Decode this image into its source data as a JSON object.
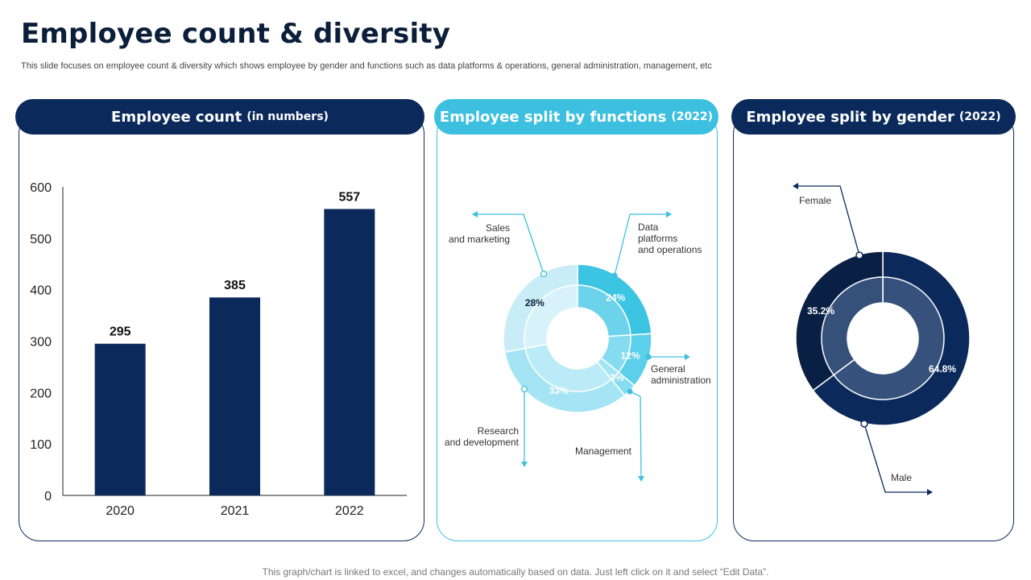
{
  "page": {
    "title": "Employee count & diversity",
    "subtitle": "This slide focuses on employee count & diversity which shows employee by gender and functions such as data platforms & operations, general administration, management, etc",
    "footer": "This graph/chart is linked to excel, and changes automatically based on data. Just left click on it and select “Edit Data”."
  },
  "panels": {
    "count": {
      "title": "Employee count ",
      "title_suffix": "(in numbers)"
    },
    "functions": {
      "title": "Employee split by functions ",
      "title_suffix": "(2022)"
    },
    "gender": {
      "title": "Employee split by gender ",
      "title_suffix": "(2022)"
    }
  },
  "colors": {
    "navy": "#0b2a5b",
    "bar": "#0b2a5b",
    "cyan": "#3dbfe0",
    "sales": "#c9edf7",
    "data_platforms": "#3cc4e3",
    "general_admin": "#5ccfeb",
    "management": "#86dcf1",
    "research": "#a4e4f4",
    "female": "#0a1f44",
    "male": "#0b2a5b"
  },
  "chart_data": [
    {
      "type": "bar",
      "title": "Employee count (in numbers)",
      "categories": [
        "2020",
        "2021",
        "2022"
      ],
      "values": [
        295,
        385,
        557
      ],
      "data_labels": [
        "295",
        "385",
        "557"
      ],
      "ylim": [
        0,
        600
      ],
      "yticks": [
        0,
        100,
        200,
        300,
        400,
        500,
        600
      ],
      "ytick_labels": [
        "0",
        "100",
        "200",
        "300",
        "400",
        "500",
        "600"
      ],
      "xlabel": "",
      "ylabel": "",
      "grid": false
    },
    {
      "type": "pie",
      "subtype": "donut",
      "title": "Employee split by functions (2022)",
      "slices": [
        {
          "key": "data_platforms",
          "label_lines": [
            "Data",
            "platforms",
            "and operations"
          ],
          "value": 24,
          "pct_label": "24%"
        },
        {
          "key": "general_admin",
          "label_lines": [
            "General",
            "administration"
          ],
          "value": 12,
          "pct_label": "12%"
        },
        {
          "key": "management",
          "label_lines": [
            "Management"
          ],
          "value": 3,
          "pct_label": "3%"
        },
        {
          "key": "research",
          "label_lines": [
            "Research",
            "and development"
          ],
          "value": 33,
          "pct_label": "33%"
        },
        {
          "key": "sales",
          "label_lines": [
            "Sales",
            "and marketing"
          ],
          "value": 28,
          "pct_label": "28%"
        }
      ]
    },
    {
      "type": "pie",
      "subtype": "donut",
      "title": "Employee split by gender (2022)",
      "slices": [
        {
          "key": "male",
          "label": "Male",
          "value": 64.8,
          "pct_label": "64.8%"
        },
        {
          "key": "female",
          "label": "Female",
          "value": 35.2,
          "pct_label": "35.2%"
        }
      ]
    }
  ]
}
